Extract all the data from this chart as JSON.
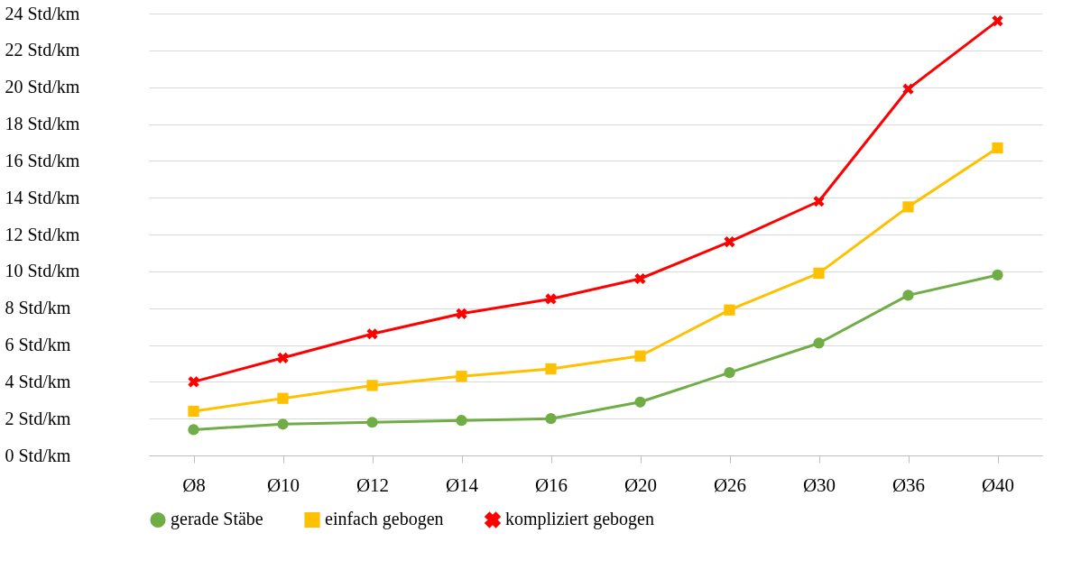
{
  "chart_data": {
    "type": "line",
    "categories": [
      "Ø8",
      "Ø10",
      "Ø12",
      "Ø14",
      "Ø16",
      "Ø20",
      "Ø26",
      "Ø30",
      "Ø36",
      "Ø40"
    ],
    "series": [
      {
        "name": "gerade Stäbe",
        "color": "#70ad47",
        "marker": "circle",
        "values": [
          1.4,
          1.7,
          1.8,
          1.9,
          2.0,
          2.9,
          4.5,
          6.1,
          8.7,
          9.8
        ]
      },
      {
        "name": "einfach gebogen",
        "color": "#ffc000",
        "marker": "square",
        "values": [
          2.4,
          3.1,
          3.8,
          4.3,
          4.7,
          5.4,
          7.9,
          9.9,
          13.5,
          16.7
        ]
      },
      {
        "name": "kompliziert gebogen",
        "color": "#ff0000",
        "marker": "cross",
        "values": [
          4.0,
          5.3,
          6.6,
          7.7,
          8.5,
          9.6,
          11.6,
          13.8,
          19.9,
          23.6
        ]
      }
    ],
    "ylim": [
      0,
      24
    ],
    "yticks": [
      {
        "value": 0,
        "label": "0 Std/km"
      },
      {
        "value": 2,
        "label": "2 Std/km"
      },
      {
        "value": 4,
        "label": "4 Std/km"
      },
      {
        "value": 6,
        "label": "6 Std/km"
      },
      {
        "value": 8,
        "label": "8 Std/km"
      },
      {
        "value": 10,
        "label": "10 Std/km"
      },
      {
        "value": 12,
        "label": "12 Std/km"
      },
      {
        "value": 14,
        "label": "14 Std/km"
      },
      {
        "value": 16,
        "label": "16 Std/km"
      },
      {
        "value": 18,
        "label": "18 Std/km"
      },
      {
        "value": 20,
        "label": "20 Std/km"
      },
      {
        "value": 22,
        "label": "22 Std/km"
      },
      {
        "value": 24,
        "label": "24 Std/km"
      }
    ],
    "grid": "y",
    "legend": "bottom",
    "line_style": "solid"
  }
}
